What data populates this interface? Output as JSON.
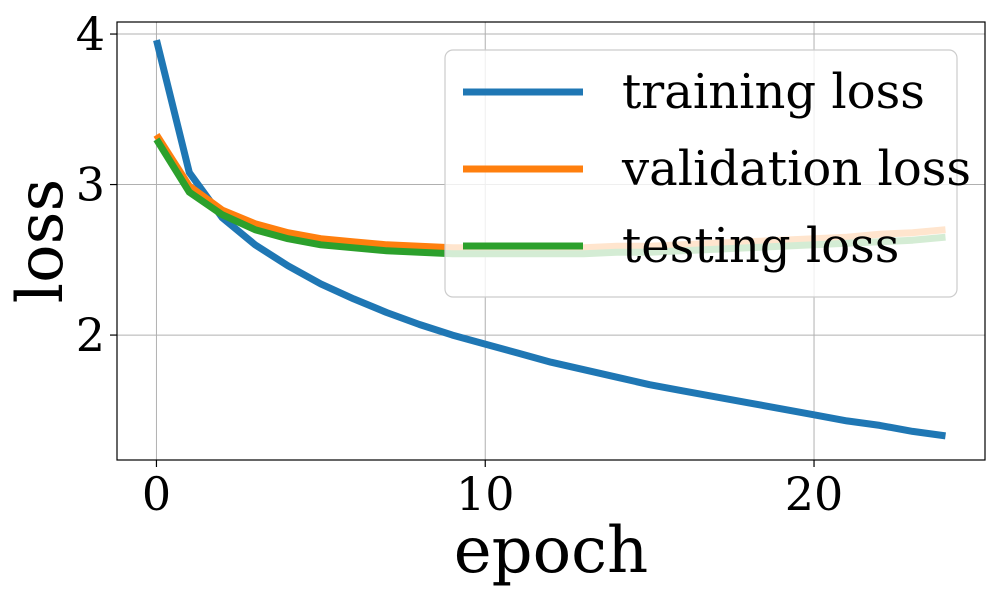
{
  "chart_data": {
    "type": "line",
    "xlabel": "epoch",
    "ylabel": "loss",
    "xlim": [
      -1.2,
      25.2
    ],
    "ylim": [
      1.17,
      4.08
    ],
    "xticks": [
      0,
      10,
      20
    ],
    "yticks": [
      2,
      3,
      4
    ],
    "grid": true,
    "legend": "top-right",
    "series": [
      {
        "name": "training loss",
        "color": "#1f77b4",
        "x": [
          0,
          1,
          2,
          3,
          4,
          5,
          6,
          7,
          8,
          9,
          10,
          11,
          12,
          13,
          14,
          15,
          16,
          17,
          18,
          19,
          20,
          21,
          22,
          23,
          24
        ],
        "y": [
          3.96,
          3.08,
          2.78,
          2.6,
          2.46,
          2.34,
          2.24,
          2.15,
          2.07,
          2.0,
          1.94,
          1.88,
          1.82,
          1.77,
          1.72,
          1.67,
          1.63,
          1.59,
          1.55,
          1.51,
          1.47,
          1.43,
          1.4,
          1.36,
          1.33
        ]
      },
      {
        "name": "validation loss",
        "color": "#ff7f0e",
        "x": [
          0,
          1,
          2,
          3,
          4,
          5,
          6,
          7,
          8,
          9,
          10,
          11,
          12,
          13,
          14,
          15,
          16,
          17,
          18,
          19,
          20,
          21,
          22,
          23,
          24
        ],
        "y": [
          3.33,
          2.99,
          2.83,
          2.74,
          2.68,
          2.64,
          2.62,
          2.6,
          2.59,
          2.58,
          2.58,
          2.58,
          2.58,
          2.58,
          2.59,
          2.59,
          2.6,
          2.61,
          2.62,
          2.63,
          2.64,
          2.65,
          2.67,
          2.68,
          2.7
        ]
      },
      {
        "name": "testing loss",
        "color": "#2ca02c",
        "x": [
          0,
          1,
          2,
          3,
          4,
          5,
          6,
          7,
          8,
          9,
          10,
          11,
          12,
          13,
          14,
          15,
          16,
          17,
          18,
          19,
          20,
          21,
          22,
          23,
          24
        ],
        "y": [
          3.3,
          2.95,
          2.8,
          2.7,
          2.64,
          2.6,
          2.58,
          2.56,
          2.55,
          2.54,
          2.54,
          2.54,
          2.54,
          2.54,
          2.55,
          2.55,
          2.56,
          2.57,
          2.58,
          2.59,
          2.6,
          2.61,
          2.62,
          2.63,
          2.65
        ]
      }
    ]
  }
}
